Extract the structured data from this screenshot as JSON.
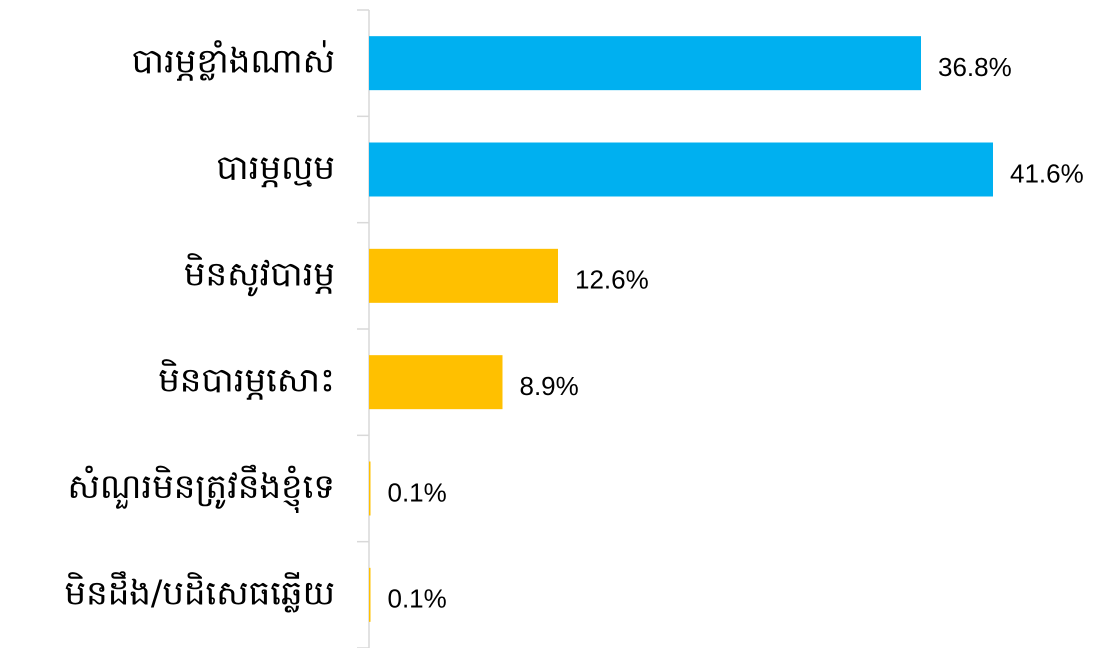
{
  "chart_data": {
    "type": "bar",
    "orientation": "horizontal",
    "categories": [
      "បារម្ភខ្លាំងណាស់",
      "បារម្ភល្មម",
      "មិនសូវបារម្ភ",
      "មិនបារម្ភសោះ",
      "សំណួរមិនត្រូវនឹងខ្ញុំទេ",
      "មិនដឹង/បដិសេធឆ្លើយ"
    ],
    "values": [
      36.8,
      41.6,
      12.6,
      8.9,
      0.1,
      0.1
    ],
    "value_labels": [
      "36.8%",
      "41.6%",
      "12.6%",
      "8.9%",
      "0.1%",
      "0.1%"
    ],
    "colors": [
      "#00b0f0",
      "#00b0f0",
      "#ffc000",
      "#ffc000",
      "#ffc000",
      "#ffc000"
    ]
  }
}
